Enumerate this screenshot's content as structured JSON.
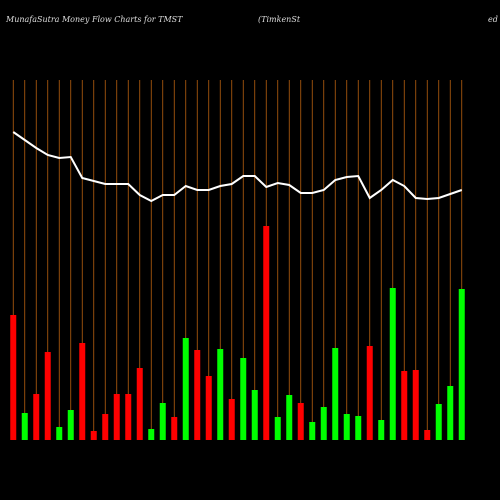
{
  "chart_data": {
    "type": "bar",
    "title": "MunafaSutra  Money Flow  Charts for TMST",
    "subtitle": "(TimkenSt",
    "subtitle_tail": "ed",
    "categories": [
      null,
      null,
      null,
      null,
      null,
      null,
      null,
      null,
      null,
      null,
      null,
      null,
      null,
      null,
      null,
      null,
      null,
      null,
      null,
      null,
      null,
      null,
      null,
      null,
      null,
      null,
      null,
      null,
      null,
      null,
      null,
      null,
      null,
      null,
      null,
      null,
      null,
      null,
      null,
      null
    ],
    "values": [
      125,
      27,
      46,
      88,
      13,
      30,
      97,
      9,
      26,
      46,
      46,
      72,
      11,
      37,
      23,
      102,
      90,
      64,
      91,
      41,
      82,
      50,
      214,
      23,
      45,
      37,
      18,
      33,
      92,
      26,
      24,
      94,
      20,
      152,
      69,
      70,
      10,
      36,
      54,
      151
    ],
    "colors": [
      "red",
      "lime",
      "red",
      "red",
      "lime",
      "lime",
      "red",
      "red",
      "red",
      "red",
      "red",
      "red",
      "lime",
      "lime",
      "red",
      "lime",
      "red",
      "red",
      "lime",
      "red",
      "lime",
      "lime",
      "red",
      "lime",
      "lime",
      "red",
      "lime",
      "lime",
      "lime",
      "lime",
      "lime",
      "red",
      "lime",
      "lime",
      "red",
      "red",
      "red",
      "lime",
      "lime",
      "lime"
    ],
    "line_values": [
      308,
      300,
      292,
      285,
      282,
      283,
      262,
      259,
      256,
      256,
      256,
      245,
      239,
      245,
      245,
      254,
      250,
      250,
      254,
      256,
      264,
      264,
      253,
      257,
      255,
      247,
      247,
      250,
      260,
      263,
      264,
      242,
      250,
      260,
      254,
      242,
      241,
      242,
      246,
      250
    ],
    "line_color": "#ffffff",
    "grid_color": "#b8610f",
    "ylim": [
      0,
      360
    ]
  }
}
